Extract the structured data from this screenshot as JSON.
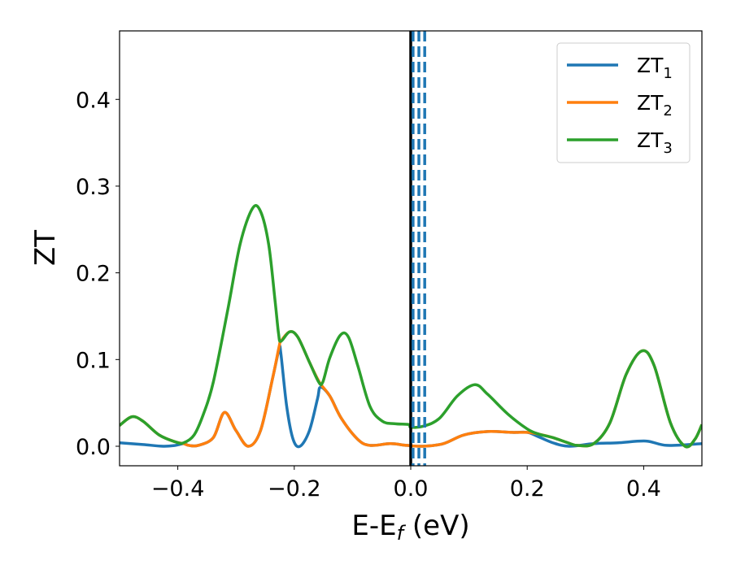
{
  "chart_data": {
    "type": "line",
    "title": "",
    "xlabel": "E-E",
    "xlabel_sub": "f",
    "xlabel_unit": " (eV)",
    "ylabel": "ZT",
    "xlim": [
      -0.5,
      0.5
    ],
    "ylim": [
      -0.0225,
      0.479
    ],
    "xticks": [
      -0.4,
      -0.2,
      0.0,
      0.2,
      0.4
    ],
    "xtick_labels": [
      "−0.4",
      "−0.2",
      "0.0",
      "0.2",
      "0.4"
    ],
    "yticks": [
      0.0,
      0.1,
      0.2,
      0.3,
      0.4
    ],
    "ytick_labels": [
      "0.0",
      "0.1",
      "0.2",
      "0.3",
      "0.4"
    ],
    "grid": false,
    "legend_position": "top-right",
    "vlines": [
      {
        "x": 0.0,
        "color": "#000000",
        "style": "solid"
      },
      {
        "x": 0.004,
        "color": "#1f77b4",
        "style": "dashed"
      },
      {
        "x": 0.014,
        "color": "#1f77b4",
        "style": "dashed"
      },
      {
        "x": 0.024,
        "color": "#1f77b4",
        "style": "dashed"
      }
    ],
    "series": [
      {
        "name": "ZT",
        "sub": "1",
        "color": "#1f77b4",
        "x": [
          -0.5,
          -0.46,
          -0.425,
          -0.404,
          -0.39,
          -0.381,
          -0.365,
          -0.339,
          -0.32,
          -0.3,
          -0.279,
          -0.258,
          -0.237,
          -0.226,
          -0.223,
          -0.213,
          -0.202,
          -0.19,
          -0.174,
          -0.16,
          -0.155,
          -0.139,
          -0.119,
          -0.091,
          -0.07,
          -0.035,
          -0.007,
          0.021,
          0.056,
          0.091,
          0.132,
          0.174,
          0.2,
          0.216,
          0.244,
          0.272,
          0.314,
          0.356,
          0.404,
          0.44,
          0.5
        ],
        "y": [
          0.004,
          0.002,
          0.0,
          0.001,
          0.003,
          0.001,
          0.001,
          0.01,
          0.039,
          0.018,
          0.0,
          0.018,
          0.079,
          0.112,
          0.107,
          0.046,
          0.008,
          0.0,
          0.018,
          0.055,
          0.068,
          0.058,
          0.032,
          0.008,
          0.001,
          0.003,
          0.001,
          0.0,
          0.003,
          0.013,
          0.017,
          0.016,
          0.016,
          0.012,
          0.004,
          0.0,
          0.003,
          0.004,
          0.006,
          0.001,
          0.003
        ]
      },
      {
        "name": "ZT",
        "sub": "2",
        "color": "#ff7f0e",
        "x": [
          -0.5,
          -0.479,
          -0.46,
          -0.432,
          -0.404,
          -0.39,
          -0.381,
          -0.365,
          -0.339,
          -0.32,
          -0.3,
          -0.279,
          -0.258,
          -0.237,
          -0.226,
          -0.223,
          -0.208,
          -0.194,
          -0.174,
          -0.157,
          -0.139,
          -0.119,
          -0.091,
          -0.07,
          -0.035,
          -0.007,
          0.021,
          0.056,
          0.091,
          0.132,
          0.174,
          0.2,
          0.22,
          0.244,
          0.27,
          0.286,
          0.314,
          0.342,
          0.37,
          0.397,
          0.418,
          0.446,
          0.471,
          0.488,
          0.5
        ],
        "y": [
          0.024,
          0.034,
          0.029,
          0.013,
          0.005,
          0.003,
          0.001,
          0.001,
          0.01,
          0.039,
          0.018,
          0.0,
          0.018,
          0.079,
          0.115,
          0.121,
          0.132,
          0.126,
          0.097,
          0.074,
          0.058,
          0.032,
          0.008,
          0.001,
          0.003,
          0.001,
          0.0,
          0.003,
          0.013,
          0.017,
          0.016,
          0.016,
          0.014,
          0.01,
          0.004,
          0.001,
          0.003,
          0.027,
          0.083,
          0.11,
          0.093,
          0.027,
          0.0,
          0.008,
          0.025
        ]
      },
      {
        "name": "ZT",
        "sub": "3",
        "color": "#2ca02c",
        "x": [
          -0.5,
          -0.479,
          -0.46,
          -0.432,
          -0.404,
          -0.39,
          -0.372,
          -0.356,
          -0.339,
          -0.314,
          -0.293,
          -0.272,
          -0.258,
          -0.244,
          -0.233,
          -0.227,
          -0.223,
          -0.208,
          -0.194,
          -0.174,
          -0.158,
          -0.151,
          -0.139,
          -0.121,
          -0.107,
          -0.091,
          -0.07,
          -0.049,
          -0.028,
          -0.003,
          0.0,
          0.021,
          0.049,
          0.08,
          0.11,
          0.132,
          0.167,
          0.2,
          0.22,
          0.244,
          0.27,
          0.286,
          0.314,
          0.342,
          0.37,
          0.397,
          0.418,
          0.446,
          0.471,
          0.488,
          0.5
        ],
        "y": [
          0.024,
          0.034,
          0.029,
          0.013,
          0.005,
          0.004,
          0.013,
          0.037,
          0.074,
          0.158,
          0.233,
          0.274,
          0.271,
          0.233,
          0.168,
          0.13,
          0.121,
          0.132,
          0.126,
          0.097,
          0.074,
          0.074,
          0.102,
          0.128,
          0.126,
          0.093,
          0.046,
          0.029,
          0.026,
          0.025,
          0.022,
          0.023,
          0.032,
          0.058,
          0.071,
          0.06,
          0.037,
          0.02,
          0.014,
          0.01,
          0.004,
          0.001,
          0.003,
          0.027,
          0.083,
          0.11,
          0.093,
          0.027,
          0.0,
          0.008,
          0.025
        ]
      }
    ]
  }
}
